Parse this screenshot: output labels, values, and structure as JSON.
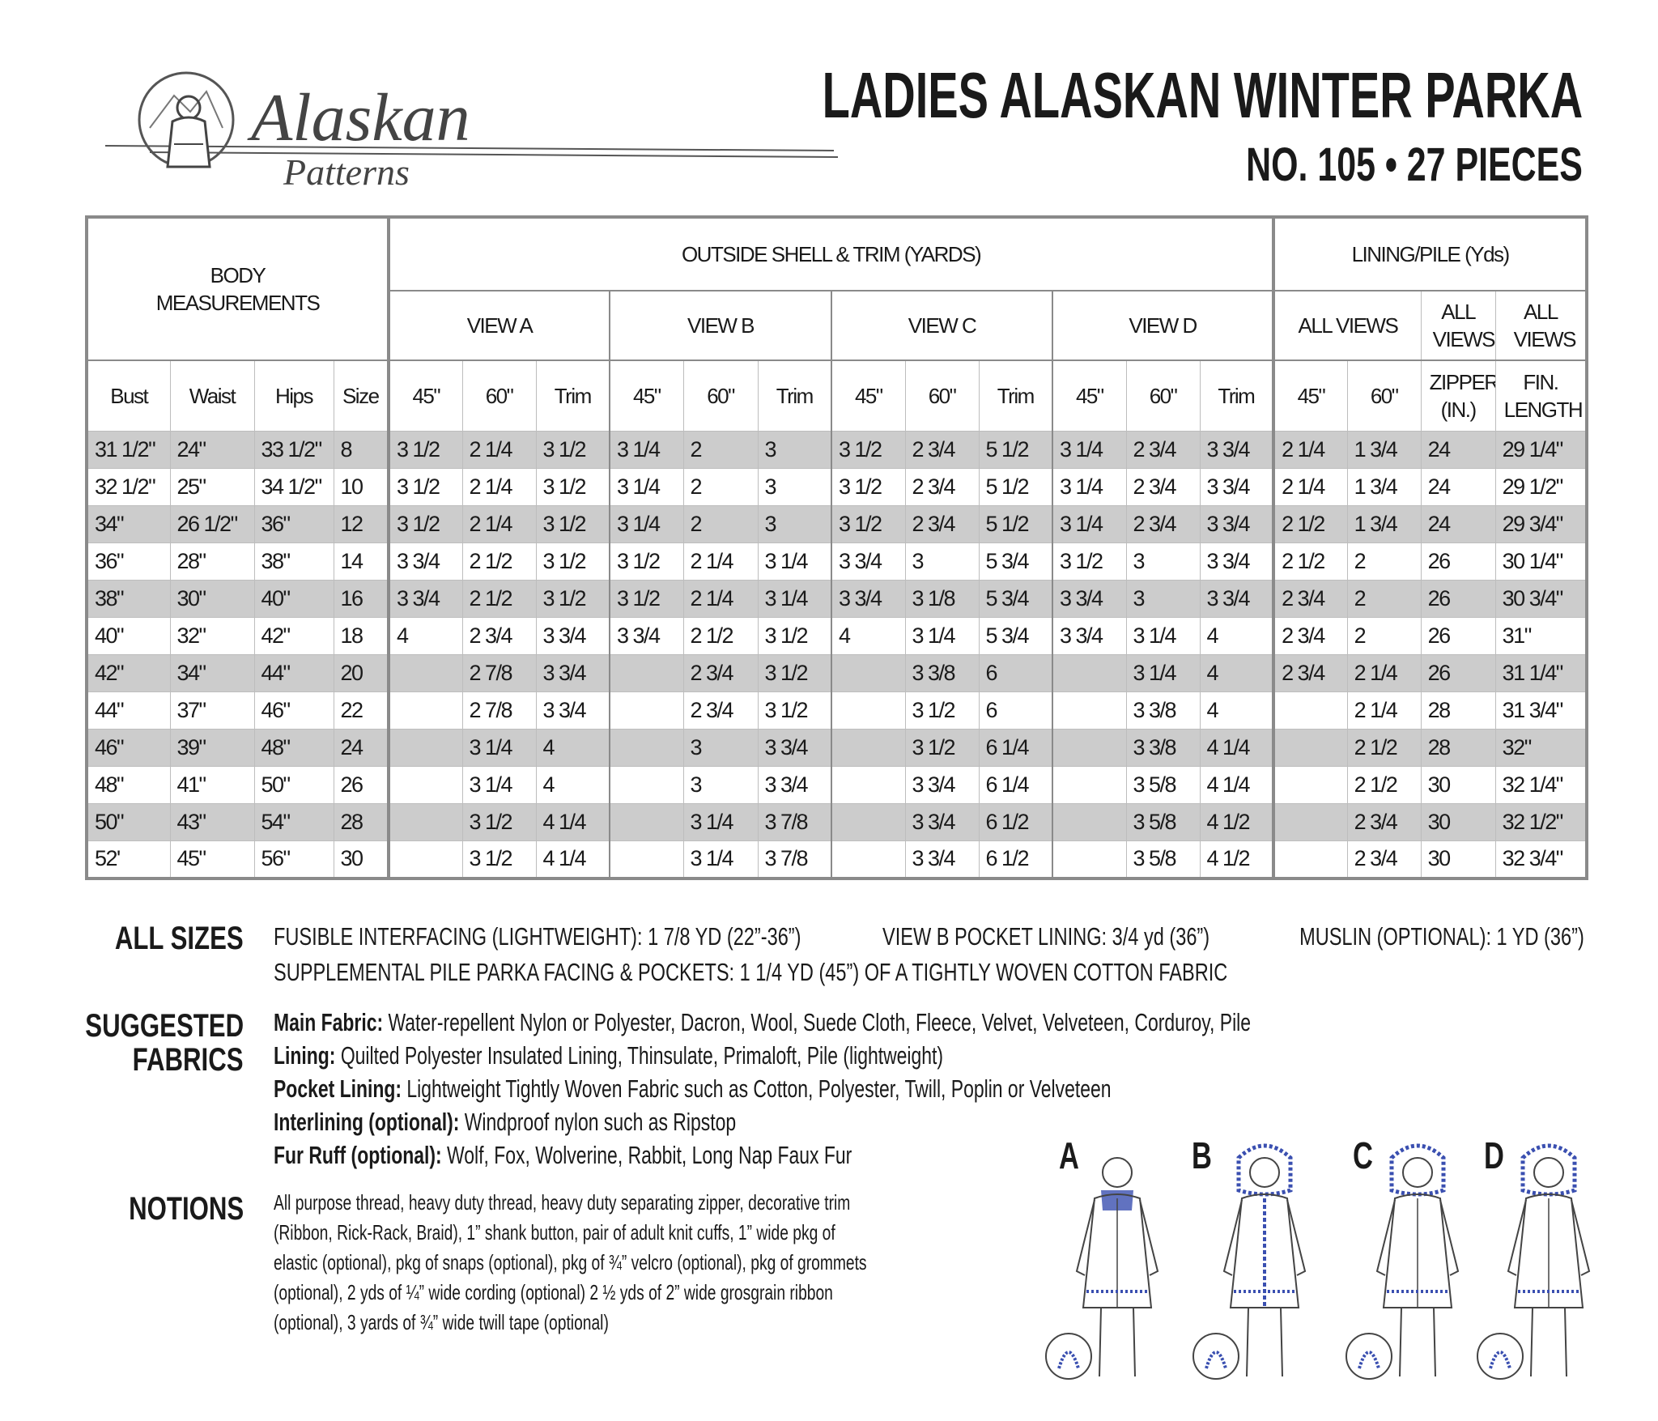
{
  "logo": {
    "word1": "Alaskan",
    "word2": "Patterns"
  },
  "header": {
    "title": "LADIES ALASKAN WINTER PARKA",
    "subtitle": "NO. 105  •  27 PIECES"
  },
  "table": {
    "group_headers": {
      "body": "BODY MEASUREMENTS",
      "shell": "OUTSIDE SHELL & TRIM (YARDS)",
      "lining": "LINING/PILE (Yds)"
    },
    "view_headers": {
      "a": "VIEW A",
      "b": "VIEW B",
      "c": "VIEW C",
      "d": "VIEW D",
      "all1": "ALL VIEWS",
      "all2": "ALL VIEWS",
      "all3": "ALL VIEWS"
    },
    "columns": [
      "Bust",
      "Waist",
      "Hips",
      "Size",
      "45\"",
      "60\"",
      "Trim",
      "45\"",
      "60\"",
      "Trim",
      "45\"",
      "60\"",
      "Trim",
      "45\"",
      "60\"",
      "Trim",
      "45\"",
      "60\"",
      "ZIPPER (IN.)",
      "FIN. LENGTH"
    ],
    "rows": [
      [
        "31 1/2\"",
        "24\"",
        "33 1/2\"",
        "8",
        "3 1/2",
        "2 1/4",
        "3 1/2",
        "3 1/4",
        "2",
        "3",
        "3 1/2",
        "2 3/4",
        "5 1/2",
        "3 1/4",
        "2 3/4",
        "3 3/4",
        "2 1/4",
        "1 3/4",
        "24",
        "29 1/4\""
      ],
      [
        "32 1/2\"",
        "25\"",
        "34 1/2\"",
        "10",
        "3 1/2",
        "2 1/4",
        "3 1/2",
        "3 1/4",
        "2",
        "3",
        "3 1/2",
        "2 3/4",
        "5 1/2",
        "3 1/4",
        "2 3/4",
        "3 3/4",
        "2 1/4",
        "1 3/4",
        "24",
        "29 1/2\""
      ],
      [
        "34\"",
        "26 1/2\"",
        "36\"",
        "12",
        "3 1/2",
        "2 1/4",
        "3 1/2",
        "3 1/4",
        "2",
        "3",
        "3 1/2",
        "2 3/4",
        "5 1/2",
        "3 1/4",
        "2 3/4",
        "3 3/4",
        "2 1/2",
        "1 3/4",
        "24",
        "29 3/4\""
      ],
      [
        "36\"",
        "28\"",
        "38\"",
        "14",
        "3 3/4",
        "2 1/2",
        "3 1/2",
        "3 1/2",
        "2 1/4",
        "3 1/4",
        "3 3/4",
        "3",
        "5 3/4",
        "3 1/2",
        "3",
        "3 3/4",
        "2 1/2",
        "2",
        "26",
        "30 1/4\""
      ],
      [
        "38\"",
        "30\"",
        "40\"",
        "16",
        "3 3/4",
        "2 1/2",
        "3 1/2",
        "3 1/2",
        "2 1/4",
        "3 1/4",
        "3 3/4",
        "3 1/8",
        "5 3/4",
        "3 3/4",
        "3",
        "3 3/4",
        "2 3/4",
        "2",
        "26",
        "30 3/4\""
      ],
      [
        "40\"",
        "32\"",
        "42\"",
        "18",
        "4",
        "2 3/4",
        "3 3/4",
        "3 3/4",
        "2 1/2",
        "3 1/2",
        "4",
        "3 1/4",
        "5 3/4",
        "3 3/4",
        "3 1/4",
        "4",
        "2 3/4",
        "2",
        "26",
        "31\""
      ],
      [
        "42\"",
        "34\"",
        "44\"",
        "20",
        "",
        "2 7/8",
        "3 3/4",
        "",
        "2 3/4",
        "3 1/2",
        "",
        "3 3/8",
        "6",
        "",
        "3 1/4",
        "4",
        "2 3/4",
        "2 1/4",
        "26",
        "31 1/4\""
      ],
      [
        "44\"",
        "37\"",
        "46\"",
        "22",
        "",
        "2 7/8",
        "3 3/4",
        "",
        "2 3/4",
        "3 1/2",
        "",
        "3 1/2",
        "6",
        "",
        "3 3/8",
        "4",
        "",
        "2 1/4",
        "28",
        "31 3/4\""
      ],
      [
        "46\"",
        "39\"",
        "48\"",
        "24",
        "",
        "3 1/4",
        "4",
        "",
        "3",
        "3 3/4",
        "",
        "3 1/2",
        "6 1/4",
        "",
        "3 3/8",
        "4 1/4",
        "",
        "2 1/2",
        "28",
        "32\""
      ],
      [
        "48\"",
        "41\"",
        "50\"",
        "26",
        "",
        "3 1/4",
        "4",
        "",
        "3",
        "3 3/4",
        "",
        "3 3/4",
        "6 1/4",
        "",
        "3 5/8",
        "4 1/4",
        "",
        "2 1/2",
        "30",
        "32 1/4\""
      ],
      [
        "50\"",
        "43\"",
        "54\"",
        "28",
        "",
        "3 1/2",
        "4 1/4",
        "",
        "3 1/4",
        "3 7/8",
        "",
        "3 3/4",
        "6 1/2",
        "",
        "3 5/8",
        "4 1/2",
        "",
        "2 3/4",
        "30",
        "32 1/2\""
      ],
      [
        "52'",
        "45\"",
        "56\"",
        "30",
        "",
        "3 1/2",
        "4 1/4",
        "",
        "3 1/4",
        "3 7/8",
        "",
        "3 3/4",
        "6 1/2",
        "",
        "3 5/8",
        "4 1/2",
        "",
        "2 3/4",
        "30",
        "32 3/4\""
      ]
    ]
  },
  "all_sizes": {
    "heading": "ALL SIZES",
    "interfacing": "FUSIBLE INTERFACING (LIGHTWEIGHT): 1 7/8 YD (22”-36”)",
    "pocket_lining": "VIEW B POCKET LINING: 3/4 yd (36”)",
    "muslin": "MUSLIN (OPTIONAL): 1 YD (36”)",
    "supplemental": "SUPPLEMENTAL PILE PARKA FACING & POCKETS: 1 1/4 YD (45”) OF A TIGHTLY WOVEN COTTON FABRIC"
  },
  "fabrics": {
    "heading_line1": "SUGGESTED",
    "heading_line2": "FABRICS",
    "items": [
      {
        "label": "Main Fabric:",
        "text": " Water-repellent Nylon or Polyester, Dacron, Wool, Suede Cloth, Fleece, Velvet, Velveteen, Corduroy, Pile"
      },
      {
        "label": "Lining:",
        "text": " Quilted Polyester Insulated Lining, Thinsulate, Primaloft, Pile (lightweight)"
      },
      {
        "label": "Pocket Lining:",
        "text": " Lightweight Tightly Woven Fabric such as Cotton, Polyester, Twill, Poplin or Velveteen"
      },
      {
        "label": "Interlining (optional):",
        "text": " Windproof nylon such as Ripstop"
      },
      {
        "label": "Fur Ruff (optional):",
        "text": " Wolf, Fox, Wolverine, Rabbit, Long Nap Faux Fur"
      }
    ]
  },
  "notions": {
    "heading": "NOTIONS",
    "lines": [
      "All purpose thread, heavy duty thread, heavy duty separating zipper, decorative trim",
      "(Ribbon, Rick-Rack, Braid), 1” shank button, pair of adult knit cuffs, 1” wide pkg of",
      "elastic (optional), pkg of snaps (optional), pkg of ¾” velcro (optional), pkg of grommets",
      "(optional), 2 yds of ¼” wide cording (optional) 2 ½ yds of 2” wide grosgrain ribbon",
      "(optional), 3 yards of ¾” wide twill tape (optional)"
    ]
  },
  "views": [
    {
      "letter": "A",
      "icon": "parka-view-a-illustration"
    },
    {
      "letter": "B",
      "icon": "parka-view-b-illustration"
    },
    {
      "letter": "C",
      "icon": "parka-view-c-illustration"
    },
    {
      "letter": "D",
      "icon": "parka-view-d-illustration"
    }
  ],
  "colors": {
    "row_shade": "#cccccc",
    "border": "#8a8a8a",
    "ruff_blue": "#3a4fb0"
  }
}
